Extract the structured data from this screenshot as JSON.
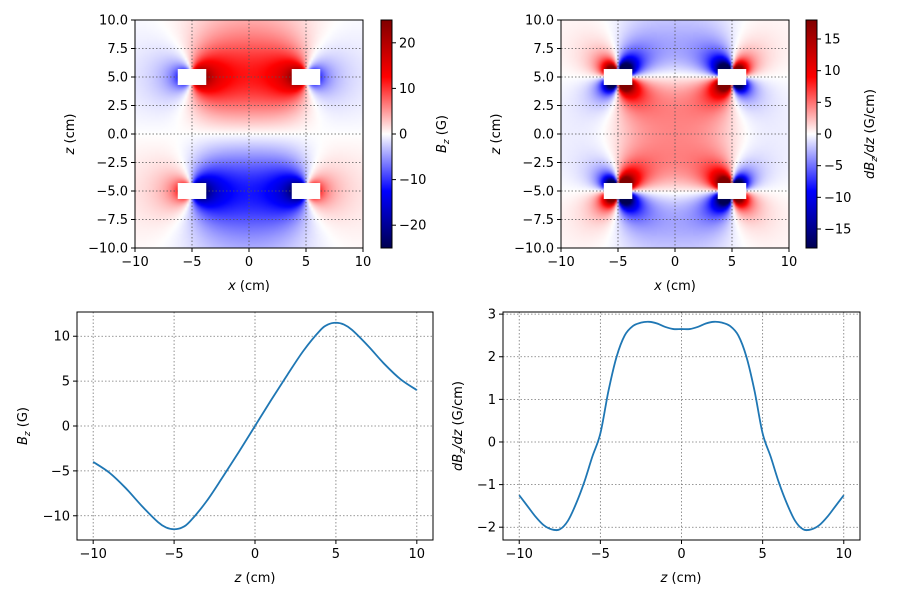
{
  "chart_data": [
    {
      "type": "heatmap",
      "xlabel": "x (cm)",
      "ylabel": "z (cm)",
      "xlim": [
        -10,
        10
      ],
      "ylim": [
        -10,
        10
      ],
      "xticks": [
        "−10",
        "−5",
        "0",
        "5",
        "10"
      ],
      "yticks": [
        "−10.0",
        "−7.5",
        "−5.0",
        "−2.5",
        "0.0",
        "2.5",
        "5.0",
        "7.5",
        "10.0"
      ],
      "grid": true,
      "colormap": "seismic",
      "colorbar": {
        "label": "B_z (G)",
        "range": [
          -25,
          25
        ],
        "ticks": [
          "−20",
          "−10",
          "0",
          "10",
          "20"
        ]
      },
      "coil_cross_sections_x": [
        -5,
        5
      ],
      "coil_z": [
        -5,
        5
      ],
      "field": "B_z"
    },
    {
      "type": "heatmap",
      "xlabel": "x (cm)",
      "ylabel": "z (cm)",
      "xlim": [
        -10,
        10
      ],
      "ylim": [
        -10,
        10
      ],
      "xticks": [
        "−10",
        "−5",
        "0",
        "5",
        "10"
      ],
      "yticks": [
        "−10.0",
        "−7.5",
        "−5.0",
        "−2.5",
        "0.0",
        "2.5",
        "5.0",
        "7.5",
        "10.0"
      ],
      "grid": true,
      "colormap": "seismic",
      "colorbar": {
        "label": "dB_z/dz (G/cm)",
        "range": [
          -18,
          18
        ],
        "ticks": [
          "−15",
          "−10",
          "−5",
          "0",
          "5",
          "10",
          "15"
        ]
      },
      "coil_cross_sections_x": [
        -5,
        5
      ],
      "coil_z": [
        -5,
        5
      ],
      "field": "dB_z/dz"
    },
    {
      "type": "line",
      "xlabel": "z (cm)",
      "ylabel": "B_z (G)",
      "xlim": [
        -11,
        11
      ],
      "ylim": [
        -12.7,
        12.7
      ],
      "xticks": [
        "−10",
        "−5",
        "0",
        "5",
        "10"
      ],
      "yticks": [
        "−10",
        "−5",
        "0",
        "5",
        "10"
      ],
      "grid": true,
      "color": "#1f77b4",
      "x": [
        -10,
        -9,
        -8,
        -7,
        -6,
        -5.5,
        -5,
        -4.5,
        -4,
        -3,
        -2,
        -1,
        0,
        1,
        2,
        3,
        4,
        4.5,
        5,
        5.5,
        6,
        7,
        8,
        9,
        10
      ],
      "y": [
        -4.0,
        -5.2,
        -6.9,
        -8.9,
        -10.7,
        -11.3,
        -11.5,
        -11.3,
        -10.6,
        -8.4,
        -5.7,
        -2.9,
        0,
        2.9,
        5.7,
        8.4,
        10.6,
        11.3,
        11.5,
        11.3,
        10.7,
        8.9,
        6.9,
        5.2,
        4.0
      ]
    },
    {
      "type": "line",
      "xlabel": "z (cm)",
      "ylabel": "dB_z/dz (G/cm)",
      "xlim": [
        -11,
        11
      ],
      "ylim": [
        -2.3,
        3.05
      ],
      "xticks": [
        "−10",
        "−5",
        "0",
        "5",
        "10"
      ],
      "yticks": [
        "−2",
        "−1",
        "0",
        "1",
        "2",
        "3"
      ],
      "grid": true,
      "color": "#1f77b4",
      "x": [
        -10,
        -9.5,
        -9,
        -8.5,
        -8,
        -7.5,
        -7,
        -6.5,
        -6,
        -5.5,
        -5,
        -4.5,
        -4,
        -3.5,
        -3,
        -2.5,
        -2,
        -1.5,
        -1,
        -0.5,
        0,
        0.5,
        1,
        1.5,
        2,
        2.5,
        3,
        3.5,
        4,
        4.5,
        5,
        5.5,
        6,
        6.5,
        7,
        7.5,
        8,
        8.5,
        9,
        9.5,
        10
      ],
      "y": [
        -1.25,
        -1.5,
        -1.75,
        -1.95,
        -2.05,
        -2.05,
        -1.85,
        -1.45,
        -0.95,
        -0.35,
        0.2,
        1.2,
        2.0,
        2.5,
        2.72,
        2.8,
        2.82,
        2.78,
        2.7,
        2.65,
        2.65,
        2.65,
        2.7,
        2.78,
        2.82,
        2.8,
        2.72,
        2.5,
        2.0,
        1.2,
        0.2,
        -0.35,
        -0.95,
        -1.45,
        -1.85,
        -2.05,
        -2.05,
        -1.95,
        -1.75,
        -1.5,
        -1.25
      ]
    }
  ]
}
